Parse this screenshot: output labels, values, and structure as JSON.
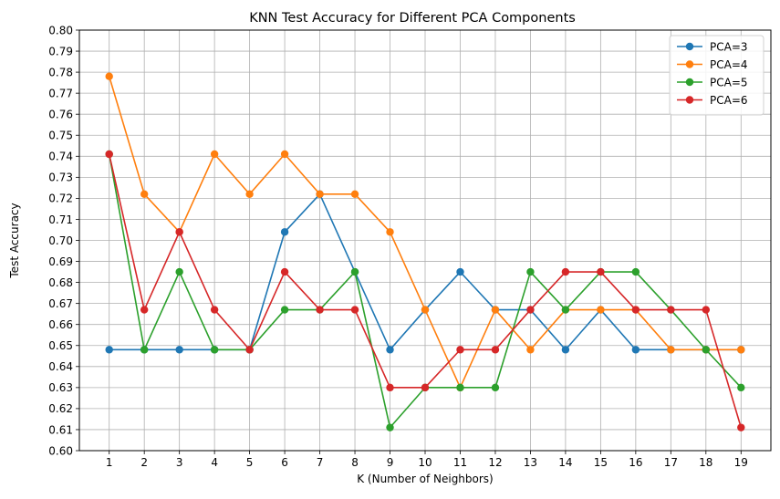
{
  "chart_data": {
    "type": "line",
    "title": "KNN Test Accuracy for Different PCA Components",
    "xlabel": "K (Number of Neighbors)",
    "ylabel": "Test Accuracy",
    "x": [
      1,
      2,
      3,
      4,
      5,
      6,
      7,
      8,
      9,
      10,
      11,
      12,
      13,
      14,
      15,
      16,
      17,
      18,
      19
    ],
    "xlim": [
      0.15,
      19.85
    ],
    "ylim": [
      0.6,
      0.8
    ],
    "yticks": [
      "0.60",
      "0.61",
      "0.62",
      "0.63",
      "0.64",
      "0.65",
      "0.66",
      "0.67",
      "0.68",
      "0.69",
      "0.70",
      "0.71",
      "0.72",
      "0.73",
      "0.74",
      "0.75",
      "0.76",
      "0.77",
      "0.78",
      "0.79",
      "0.80"
    ],
    "xticks": [
      "1",
      "2",
      "3",
      "4",
      "5",
      "6",
      "7",
      "8",
      "9",
      "10",
      "11",
      "12",
      "13",
      "14",
      "15",
      "16",
      "17",
      "18",
      "19"
    ],
    "grid": true,
    "legend_position": "top-right",
    "series": [
      {
        "name": "PCA=3",
        "color": "#1f77b4",
        "values": [
          0.648,
          0.648,
          0.648,
          0.648,
          0.648,
          0.704,
          0.722,
          0.685,
          0.648,
          0.667,
          0.685,
          0.667,
          0.667,
          0.648,
          0.667,
          0.648,
          0.648,
          0.648,
          0.648
        ]
      },
      {
        "name": "PCA=4",
        "color": "#ff7f0e",
        "values": [
          0.778,
          0.722,
          0.704,
          0.741,
          0.722,
          0.741,
          0.722,
          0.722,
          0.704,
          0.667,
          0.63,
          0.667,
          0.648,
          0.667,
          0.667,
          0.667,
          0.648,
          0.648,
          0.648
        ]
      },
      {
        "name": "PCA=5",
        "color": "#2ca02c",
        "values": [
          0.741,
          0.648,
          0.685,
          0.648,
          0.648,
          0.667,
          0.667,
          0.685,
          0.611,
          0.63,
          0.63,
          0.63,
          0.685,
          0.667,
          0.685,
          0.685,
          0.667,
          0.648,
          0.63
        ]
      },
      {
        "name": "PCA=6",
        "color": "#d62728",
        "values": [
          0.741,
          0.667,
          0.704,
          0.667,
          0.648,
          0.685,
          0.667,
          0.667,
          0.63,
          0.63,
          0.648,
          0.648,
          0.667,
          0.685,
          0.685,
          0.667,
          0.667,
          0.667,
          0.611
        ]
      }
    ]
  }
}
